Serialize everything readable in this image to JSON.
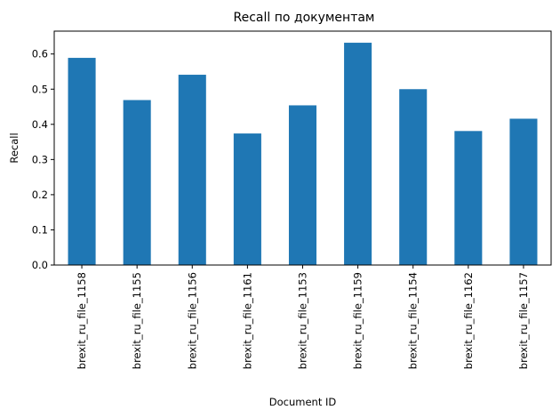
{
  "chart_data": {
    "type": "bar",
    "title": "Recall по документам",
    "xlabel": "Document ID",
    "ylabel": "Recall",
    "categories": [
      "brexit_ru_file_1158",
      "brexit_ru_file_1155",
      "brexit_ru_file_1156",
      "brexit_ru_file_1161",
      "brexit_ru_file_1153",
      "brexit_ru_file_1159",
      "brexit_ru_file_1154",
      "brexit_ru_file_1162",
      "brexit_ru_file_1157"
    ],
    "values": [
      0.589,
      0.469,
      0.541,
      0.374,
      0.454,
      0.632,
      0.5,
      0.381,
      0.416
    ],
    "ylim": [
      0,
      0.665
    ],
    "yticks": [
      "0.0",
      "0.1",
      "0.2",
      "0.3",
      "0.4",
      "0.5",
      "0.6"
    ],
    "grid": false,
    "legend": "none",
    "colors": {
      "bar": "#1f77b4",
      "axis": "#000000"
    }
  }
}
